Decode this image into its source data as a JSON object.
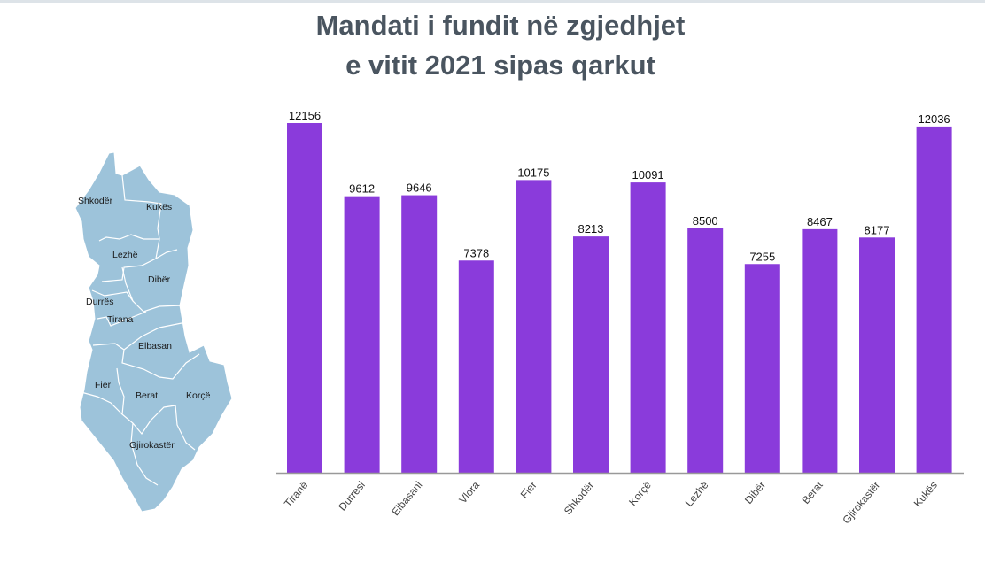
{
  "title_line1": "Mandati i fundit në zgjedhjet",
  "title_line2": "e vitit 2021 sipas qarkut",
  "map": {
    "fill": "#9dc3da",
    "labels": [
      "Shkodër",
      "Kukës",
      "Lezhë",
      "Dibër",
      "Durrës",
      "Tirana",
      "Elbasan",
      "Fier",
      "Berat",
      "Korçë",
      "Gjirokastër"
    ]
  },
  "chart_data": {
    "type": "bar",
    "title": "Mandati i fundit në zgjedhjet e vitit 2021 sipas qarkut",
    "categories": [
      "Tiranë",
      "Durresi",
      "Elbasani",
      "Vlora",
      "Fier",
      "Shkodër",
      "Korçë",
      "Lezhë",
      "Dibër",
      "Berat",
      "Gjirokastër",
      "Kukës"
    ],
    "values": [
      12156,
      9612,
      9646,
      7378,
      10175,
      8213,
      10091,
      8500,
      7255,
      8467,
      8177,
      12036
    ],
    "xlabel": "",
    "ylabel": "",
    "ylim": [
      0,
      12156
    ],
    "grid": false,
    "bar_color": "#8a3bdb"
  }
}
